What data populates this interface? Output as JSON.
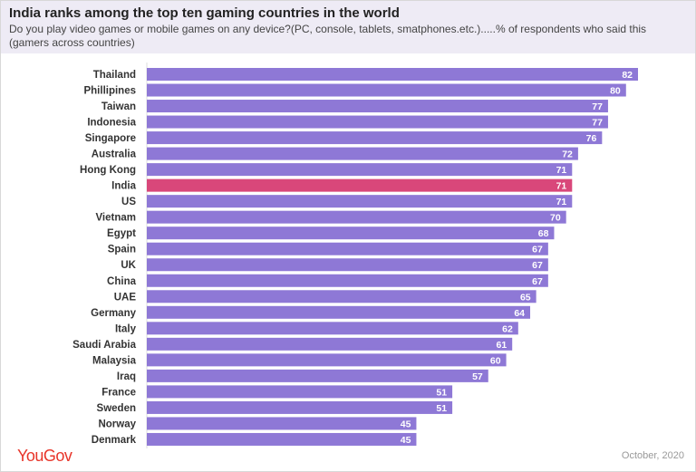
{
  "header": {
    "title": "India ranks among the top ten gaming countries in the world",
    "subtitle": "Do you play video games or mobile games on any device?(PC, console, tablets, smatphones.etc.).....% of respondents who said this (gamers across countries)"
  },
  "footer": {
    "logo": "YouGov",
    "date": "October, 2020"
  },
  "colors": {
    "bar": "#8e78d6",
    "highlight": "#d9477a",
    "logo": "#e8352a"
  },
  "chart_data": {
    "type": "bar",
    "orientation": "horizontal",
    "categories": [
      "Thailand",
      "Phillipines",
      "Taiwan",
      "Indonesia",
      "Singapore",
      "Australia",
      "Hong Kong",
      "India",
      "US",
      "Vietnam",
      "Egypt",
      "Spain",
      "UK",
      "China",
      "UAE",
      "Germany",
      "Italy",
      "Saudi Arabia",
      "Malaysia",
      "Iraq",
      "France",
      "Sweden",
      "Norway",
      "Denmark"
    ],
    "values": [
      82,
      80,
      77,
      77,
      76,
      72,
      71,
      71,
      71,
      70,
      68,
      67,
      67,
      67,
      65,
      64,
      62,
      61,
      60,
      57,
      51,
      51,
      45,
      45
    ],
    "highlight": "India",
    "xlim": [
      0,
      82
    ],
    "grid": false,
    "data_labels": true
  }
}
